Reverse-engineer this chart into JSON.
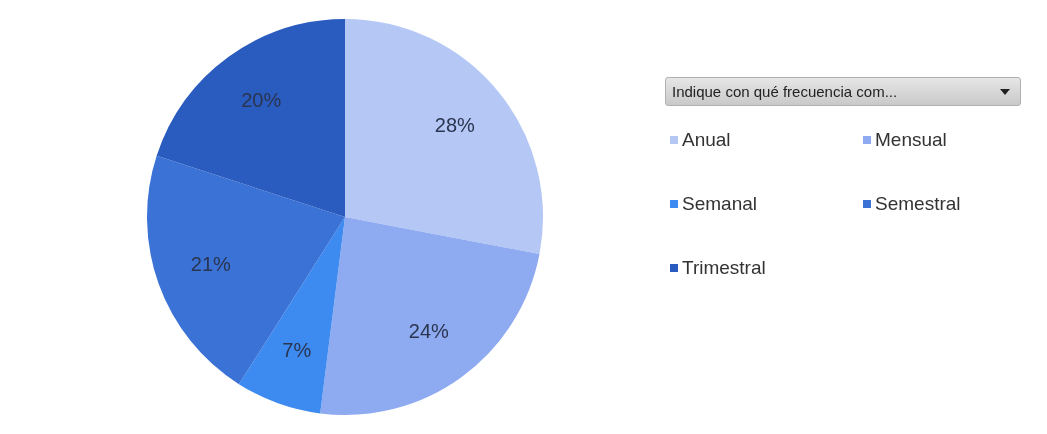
{
  "chart_data": {
    "type": "pie",
    "legend_title": "Indique con qué frecuencia com...",
    "categories": [
      "Anual",
      "Mensual",
      "Semanal",
      "Semestral",
      "Trimestral"
    ],
    "values": [
      28,
      24,
      7,
      21,
      20
    ],
    "colors": [
      "#b4c7f5",
      "#8eaaf0",
      "#3d8af0",
      "#3a72d6",
      "#2a5bbf"
    ],
    "value_labels": [
      "28%",
      "24%",
      "7%",
      "21%",
      "20%"
    ],
    "legend": "right"
  }
}
